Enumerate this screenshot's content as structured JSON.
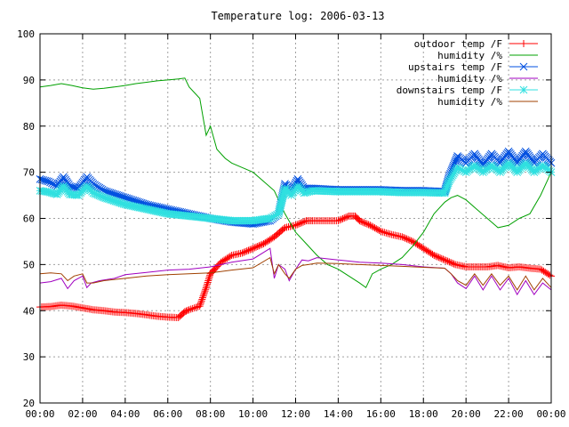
{
  "chart_data": {
    "type": "line",
    "title": "Temperature log: 2006-03-13",
    "xlabel": "",
    "ylabel": "",
    "xlim": [
      0,
      24
    ],
    "ylim": [
      20,
      100
    ],
    "x_ticks": [
      "00:00",
      "02:00",
      "04:00",
      "06:00",
      "08:00",
      "10:00",
      "12:00",
      "14:00",
      "16:00",
      "18:00",
      "20:00",
      "22:00",
      "00:00"
    ],
    "y_ticks": [
      "20",
      "30",
      "40",
      "50",
      "60",
      "70",
      "80",
      "90",
      "100"
    ],
    "grid": true,
    "legend_position": "top-right",
    "series": [
      {
        "name": "outdoor temp /F",
        "color": "#ff0000",
        "marker": "plus",
        "x": [
          0,
          0.5,
          1,
          1.5,
          2,
          2.5,
          3,
          3.5,
          4,
          4.5,
          5,
          5.5,
          6,
          6.5,
          6.8,
          7,
          7.5,
          7.8,
          8,
          8.2,
          8.5,
          9,
          9.5,
          10,
          10.5,
          11,
          11.5,
          12,
          12.5,
          12.8,
          14,
          14.5,
          14.8,
          15,
          15.5,
          16,
          16.5,
          17,
          17.5,
          18,
          18.5,
          19,
          19.5,
          20,
          20.5,
          21,
          21.5,
          22,
          22.5,
          23,
          23.5,
          24
        ],
        "y": [
          40.8,
          40.9,
          41.2,
          41,
          40.6,
          40.2,
          40,
          39.7,
          39.6,
          39.4,
          39.1,
          38.8,
          38.6,
          38.5,
          39.8,
          40.2,
          41,
          45,
          48,
          49,
          50.5,
          52,
          52.5,
          53.5,
          54.5,
          56,
          58,
          58.5,
          59.5,
          59.5,
          59.5,
          60.5,
          60.5,
          59.5,
          58.5,
          57.2,
          56.5,
          56,
          55,
          53.5,
          52,
          51,
          50,
          49.5,
          49.5,
          49.5,
          49.8,
          49.3,
          49.5,
          49.2,
          49,
          47.5
        ]
      },
      {
        "name": "humidity /%",
        "color": "#00a000",
        "marker": "none",
        "x": [
          0,
          0.5,
          1,
          1.5,
          2,
          2.5,
          3,
          3.5,
          4,
          4.5,
          5,
          5.5,
          6,
          6.5,
          6.8,
          7,
          7.5,
          7.8,
          8,
          8.3,
          8.7,
          9,
          9.5,
          10,
          10.5,
          11,
          11.5,
          12,
          12.5,
          13,
          13.5,
          14,
          14.5,
          15,
          15.3,
          15.6,
          16,
          16.5,
          17,
          17.5,
          18,
          18.5,
          19,
          19.3,
          19.6,
          20,
          20.5,
          21,
          21.5,
          22,
          22.5,
          23,
          23.5,
          24
        ],
        "y": [
          88.5,
          88.8,
          89.2,
          88.8,
          88.3,
          88,
          88.2,
          88.5,
          88.8,
          89.2,
          89.5,
          89.8,
          90,
          90.2,
          90.4,
          88.5,
          86,
          78,
          80,
          75,
          73,
          72,
          71,
          70,
          68,
          66,
          61,
          57,
          54.5,
          52,
          50,
          49,
          47.5,
          46,
          45,
          48,
          49,
          50,
          51.5,
          54,
          57,
          61,
          63.5,
          64.5,
          65,
          64,
          62,
          60,
          58,
          58.5,
          60,
          61,
          65,
          70
        ]
      },
      {
        "name": "upstairs temp /F",
        "color": "#0050e0",
        "marker": "cross",
        "x": [
          0,
          0.4,
          0.8,
          1.1,
          1.4,
          1.8,
          2.2,
          2.5,
          3,
          4,
          5,
          6,
          7,
          8,
          9,
          10,
          10.8,
          11.2,
          11.5,
          11.8,
          12.1,
          12.4,
          12.8,
          14,
          15,
          16,
          17,
          18,
          19,
          19.2,
          19.6,
          20,
          20.4,
          20.8,
          21.2,
          21.6,
          22,
          22.4,
          22.8,
          23.2,
          23.6,
          24
        ],
        "y": [
          68.5,
          68,
          67,
          69,
          67,
          66.5,
          69,
          67.5,
          66,
          64.5,
          63,
          62,
          61,
          60,
          59.2,
          58.8,
          59.5,
          61,
          67.5,
          66,
          68.5,
          66.5,
          66.5,
          66.2,
          66.2,
          66.2,
          66,
          66,
          65.8,
          69,
          73.5,
          72,
          74,
          71.5,
          74,
          72,
          74.5,
          72,
          74.5,
          72,
          74,
          72
        ]
      },
      {
        "name": "humidity /%",
        "color": "#a000c0",
        "marker": "none",
        "x": [
          0,
          0.5,
          1,
          1.3,
          1.6,
          2,
          2.2,
          2.4,
          2.8,
          3.5,
          4,
          5,
          6,
          7,
          8,
          9,
          10,
          10.8,
          11,
          11.2,
          11.5,
          11.7,
          12,
          12.3,
          12.6,
          13,
          14,
          15,
          16,
          17,
          18,
          19,
          19.3,
          19.6,
          20,
          20.4,
          20.8,
          21.2,
          21.6,
          22,
          22.4,
          22.8,
          23.2,
          23.6,
          24
        ],
        "y": [
          46,
          46.3,
          47,
          44.8,
          46.5,
          47.5,
          45,
          46,
          46.5,
          47,
          47.8,
          48.3,
          48.8,
          49,
          49.5,
          50.5,
          51.2,
          53.5,
          47,
          50,
          49,
          46.5,
          49,
          51,
          50.8,
          51.5,
          51,
          50.5,
          50.3,
          50,
          49.5,
          49.2,
          48,
          46,
          44.8,
          47.5,
          44.5,
          47.5,
          44.5,
          47,
          43.5,
          46.5,
          43.5,
          46,
          44.5
        ]
      },
      {
        "name": "downstairs temp /F",
        "color": "#30e0e0",
        "marker": "star",
        "x": [
          0,
          0.4,
          0.8,
          1.1,
          1.4,
          1.8,
          2.2,
          2.5,
          3,
          4,
          5,
          6,
          7,
          8,
          9,
          10,
          10.8,
          11.2,
          11.5,
          11.8,
          12.1,
          12.4,
          12.8,
          14,
          15,
          16,
          17,
          18,
          19,
          19.2,
          19.6,
          20,
          20.4,
          20.8,
          21.2,
          21.6,
          22,
          22.4,
          22.8,
          23.2,
          23.6,
          24
        ],
        "y": [
          66,
          65.7,
          65.2,
          67,
          65.2,
          65,
          67,
          65.5,
          64.5,
          63,
          62,
          61,
          60.5,
          60,
          59.5,
          59.5,
          60,
          61,
          66.5,
          65,
          67,
          65.5,
          66,
          65.8,
          65.8,
          65.8,
          65.6,
          65.6,
          65.5,
          68,
          71,
          70,
          71.5,
          70,
          71.5,
          70,
          72,
          70,
          72,
          70,
          71.5,
          70
        ]
      },
      {
        "name": "humidity /%",
        "color": "#a04000",
        "marker": "none",
        "x": [
          0,
          0.5,
          1,
          1.3,
          1.6,
          2,
          2.2,
          2.5,
          3,
          4,
          5,
          6,
          7,
          8,
          9,
          10,
          10.8,
          11,
          11.2,
          11.5,
          11.7,
          12,
          12.3,
          12.6,
          13,
          14,
          15,
          16,
          17,
          18,
          19,
          19.3,
          19.6,
          20,
          20.4,
          20.8,
          21.2,
          21.6,
          22,
          22.4,
          22.8,
          23.2,
          23.6,
          24
        ],
        "y": [
          48,
          48.2,
          48,
          46.5,
          47.5,
          48,
          46,
          46,
          46.5,
          47,
          47.5,
          47.8,
          48,
          48.2,
          48.8,
          49.3,
          51.5,
          48,
          50,
          48,
          47,
          49,
          49.8,
          50,
          50.3,
          50.2,
          50,
          49.8,
          49.6,
          49.4,
          49.2,
          48,
          46.5,
          45.5,
          48,
          45.5,
          48,
          45.5,
          47.5,
          44.5,
          47.5,
          44.5,
          47,
          45
        ]
      }
    ]
  }
}
